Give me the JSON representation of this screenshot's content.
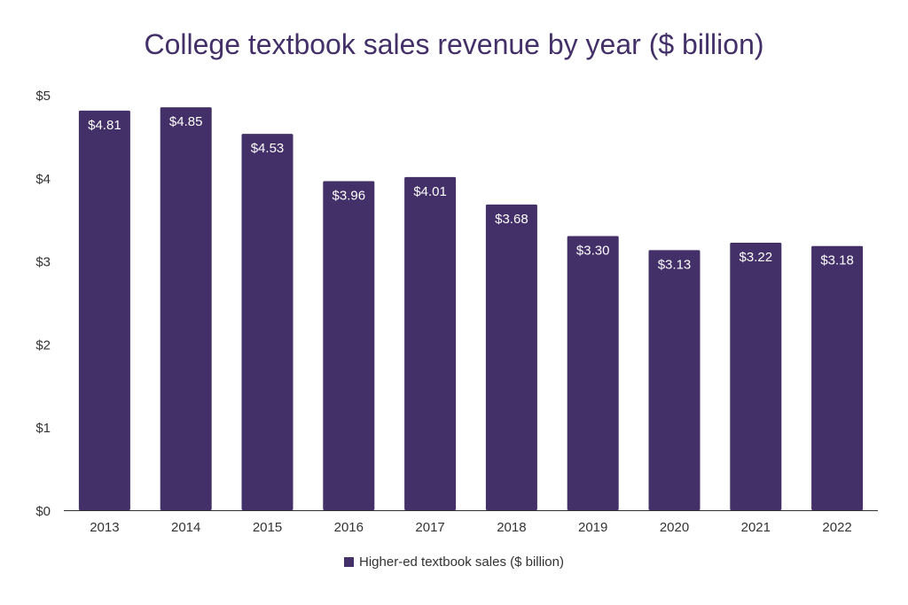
{
  "chart_data": {
    "type": "bar",
    "title": "College textbook sales revenue by year ($ billion)",
    "xlabel": "",
    "ylabel": "",
    "categories": [
      "2013",
      "2014",
      "2015",
      "2016",
      "2017",
      "2018",
      "2019",
      "2020",
      "2021",
      "2022"
    ],
    "series": [
      {
        "name": "Higher-ed textbook sales ($ billion)",
        "values": [
          4.81,
          4.85,
          4.53,
          3.96,
          4.01,
          3.68,
          3.3,
          3.13,
          3.22,
          3.18
        ],
        "labels": [
          "$4.81",
          "$4.85",
          "$4.53",
          "$3.96",
          "$4.01",
          "$3.68",
          "$3.30",
          "$3.13",
          "$3.22",
          "$3.18"
        ],
        "color": "#433068"
      }
    ],
    "ylim": [
      0,
      5
    ],
    "yticks": [
      0,
      1,
      2,
      3,
      4,
      5
    ],
    "ytick_labels": [
      "$0",
      "$1",
      "$2",
      "$3",
      "$4",
      "$5"
    ],
    "grid": false,
    "legend_position": "bottom"
  },
  "colors": {
    "bar": "#433068",
    "title": "#433068",
    "axis": "#333333",
    "bar_label": "#ffffff"
  }
}
